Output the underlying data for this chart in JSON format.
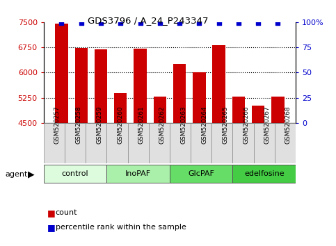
{
  "title": "GDS3796 / A_24_P243347",
  "samples": [
    "GSM520257",
    "GSM520258",
    "GSM520259",
    "GSM520260",
    "GSM520261",
    "GSM520262",
    "GSM520263",
    "GSM520264",
    "GSM520265",
    "GSM520266",
    "GSM520267",
    "GSM520268"
  ],
  "bar_values": [
    7450,
    6730,
    6690,
    5380,
    6710,
    5290,
    6250,
    6010,
    6820,
    5280,
    5010,
    5290
  ],
  "percentile_values": [
    99,
    99,
    99,
    99,
    99,
    99,
    99,
    99,
    99,
    99,
    99,
    99
  ],
  "bar_color": "#cc0000",
  "dot_color": "#0000cc",
  "ylim_left": [
    4500,
    7500
  ],
  "ylim_right": [
    0,
    100
  ],
  "yticks_left": [
    4500,
    5250,
    6000,
    6750,
    7500
  ],
  "yticks_right": [
    0,
    25,
    50,
    75,
    100
  ],
  "grid_values": [
    5250,
    6000,
    6750
  ],
  "groups": [
    {
      "label": "control",
      "start": 0,
      "end": 3,
      "color": "#ddfcdd"
    },
    {
      "label": "InoPAF",
      "start": 3,
      "end": 6,
      "color": "#aaf0aa"
    },
    {
      "label": "GlcPAF",
      "start": 6,
      "end": 9,
      "color": "#66dd66"
    },
    {
      "label": "edelfosine",
      "start": 9,
      "end": 12,
      "color": "#44cc44"
    }
  ],
  "agent_label": "agent",
  "legend_count_label": "count",
  "legend_pct_label": "percentile rank within the sample",
  "bg_color": "#ffffff",
  "tick_label_color_left": "#cc0000",
  "tick_label_color_right": "#0000cc",
  "bar_bottom": 4500,
  "bar_width": 0.65
}
